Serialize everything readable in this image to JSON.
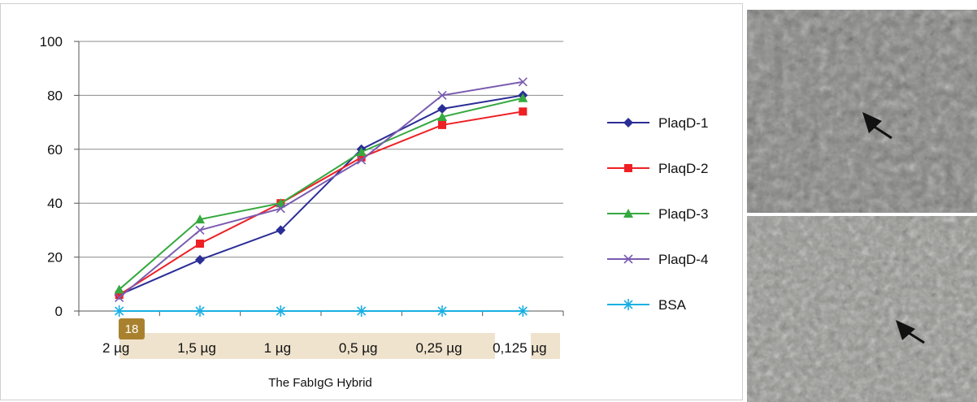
{
  "chart_data": {
    "type": "line",
    "categories": [
      "2 µg",
      "1,5 µg",
      "1 µg",
      "0,5 µg",
      "0,25 µg",
      "0,125 µg"
    ],
    "xlabel": "The FabIgG Hybrid",
    "ylabel": "",
    "ylim": [
      0,
      100
    ],
    "yticks": [
      0,
      20,
      40,
      60,
      80,
      100
    ],
    "grid": true,
    "legend_position": "right",
    "series": [
      {
        "name": "PlaqD-1",
        "values": [
          6,
          19,
          30,
          60,
          75,
          80
        ],
        "color": "#2b2d96",
        "marker": "diamond"
      },
      {
        "name": "PlaqD-2",
        "values": [
          6,
          25,
          40,
          57,
          69,
          74
        ],
        "color": "#ee2024",
        "marker": "square"
      },
      {
        "name": "PlaqD-3",
        "values": [
          8,
          34,
          40,
          59,
          72,
          79
        ],
        "color": "#35a93f",
        "marker": "triangle"
      },
      {
        "name": "PlaqD-4",
        "values": [
          5,
          30,
          38,
          56,
          80,
          85
        ],
        "color": "#7a5bb0",
        "marker": "x"
      },
      {
        "name": "BSA",
        "values": [
          0,
          0,
          0,
          0,
          0,
          0
        ],
        "color": "#1ab0e3",
        "marker": "asterisk"
      }
    ]
  },
  "badge": {
    "label": "18"
  },
  "photos": {
    "top": {
      "icon": "arrow-icon"
    },
    "bottom": {
      "icon": "arrow-icon"
    }
  }
}
